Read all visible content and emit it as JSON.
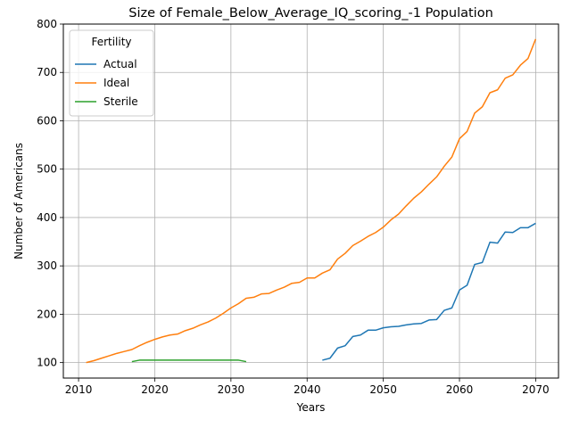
{
  "chart_data": {
    "type": "line",
    "title": "Size of Female_Below_Average_IQ_scoring_-1 Population",
    "xlabel": "Years",
    "ylabel": "Number of Americans",
    "xlim": [
      2008,
      2073
    ],
    "ylim": [
      68,
      800
    ],
    "xticks": [
      2010,
      2020,
      2030,
      2040,
      2050,
      2060,
      2070
    ],
    "yticks": [
      100,
      200,
      300,
      400,
      500,
      600,
      700,
      800
    ],
    "grid": true,
    "legend": {
      "title": "Fertility",
      "position": "top-left"
    },
    "series": [
      {
        "name": "Actual",
        "color": "#1f77b4",
        "x": [
          2042,
          2043,
          2044,
          2045,
          2046,
          2047,
          2048,
          2049,
          2050,
          2051,
          2052,
          2053,
          2054,
          2055,
          2056,
          2057,
          2058,
          2059,
          2060,
          2061,
          2062,
          2063,
          2064,
          2065,
          2066,
          2067,
          2068,
          2069,
          2070
        ],
        "y": [
          105,
          109,
          130,
          135,
          154,
          157,
          167,
          167,
          172,
          174,
          175,
          178,
          180,
          181,
          188,
          189,
          208,
          213,
          250,
          260,
          303,
          307,
          349,
          347,
          370,
          369,
          379,
          379,
          388
        ]
      },
      {
        "name": "Ideal",
        "color": "#ff7f0e",
        "x": [
          2011,
          2012,
          2013,
          2014,
          2015,
          2016,
          2017,
          2018,
          2019,
          2020,
          2021,
          2022,
          2023,
          2024,
          2025,
          2026,
          2027,
          2028,
          2029,
          2030,
          2031,
          2032,
          2033,
          2034,
          2035,
          2036,
          2037,
          2038,
          2039,
          2040,
          2041,
          2042,
          2043,
          2044,
          2045,
          2046,
          2047,
          2048,
          2049,
          2050,
          2051,
          2052,
          2053,
          2054,
          2055,
          2056,
          2057,
          2058,
          2059,
          2060,
          2061,
          2062,
          2063,
          2064,
          2065,
          2066,
          2067,
          2068,
          2069,
          2070
        ],
        "y": [
          100,
          104,
          109,
          114,
          119,
          123,
          127,
          135,
          142,
          148,
          153,
          157,
          159,
          166,
          171,
          178,
          184,
          192,
          202,
          213,
          222,
          233,
          235,
          242,
          243,
          250,
          256,
          264,
          266,
          275,
          275,
          285,
          292,
          314,
          326,
          342,
          351,
          361,
          369,
          380,
          395,
          407,
          424,
          440,
          453,
          469,
          484,
          506,
          525,
          563,
          578,
          616,
          629,
          658,
          664,
          688,
          695,
          715,
          729,
          769
        ]
      },
      {
        "name": "Sterile",
        "color": "#2ca02c",
        "x": [
          2017,
          2018,
          2019,
          2020,
          2021,
          2022,
          2023,
          2024,
          2025,
          2026,
          2027,
          2028,
          2029,
          2030,
          2031,
          2032
        ],
        "y": [
          102,
          105,
          105,
          105,
          105,
          105,
          105,
          105,
          105,
          105,
          105,
          105,
          105,
          105,
          105,
          102
        ]
      }
    ]
  }
}
